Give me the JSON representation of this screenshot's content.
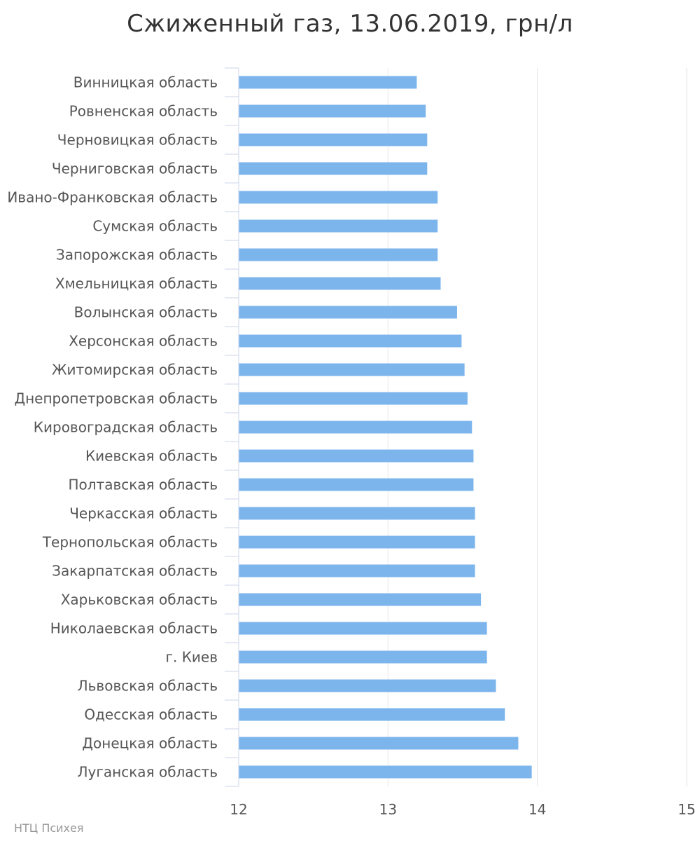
{
  "chart_data": {
    "type": "bar",
    "orientation": "horizontal",
    "title": "Сжиженный газ, 13.06.2019, грн/л",
    "categories": [
      "Винницкая область",
      "Ровненская область",
      "Черновицкая область",
      "Черниговская область",
      "Ивано-Франковская область",
      "Сумская область",
      "Запорожская область",
      "Хмельницкая область",
      "Волынская область",
      "Херсонская область",
      "Житомирская область",
      "Днепропетровская область",
      "Кировоградская область",
      "Киевская область",
      "Полтавская область",
      "Черкасская область",
      "Тернопольская область",
      "Закарпатская область",
      "Харьковская область",
      "Николаевская область",
      "г. Киев",
      "Львовская область",
      "Одесская область",
      "Донецкая область",
      "Луганская область"
    ],
    "values": [
      13.19,
      13.25,
      13.26,
      13.26,
      13.33,
      13.33,
      13.33,
      13.35,
      13.46,
      13.49,
      13.51,
      13.53,
      13.56,
      13.57,
      13.57,
      13.58,
      13.58,
      13.58,
      13.62,
      13.66,
      13.66,
      13.72,
      13.78,
      13.87,
      13.96
    ],
    "xlim": [
      12,
      15
    ],
    "xticks": [
      "12",
      "13",
      "14",
      "15"
    ],
    "grid": true,
    "bar_color": "#7cb5ec"
  },
  "footer": {
    "credit": "НТЦ Психея"
  }
}
